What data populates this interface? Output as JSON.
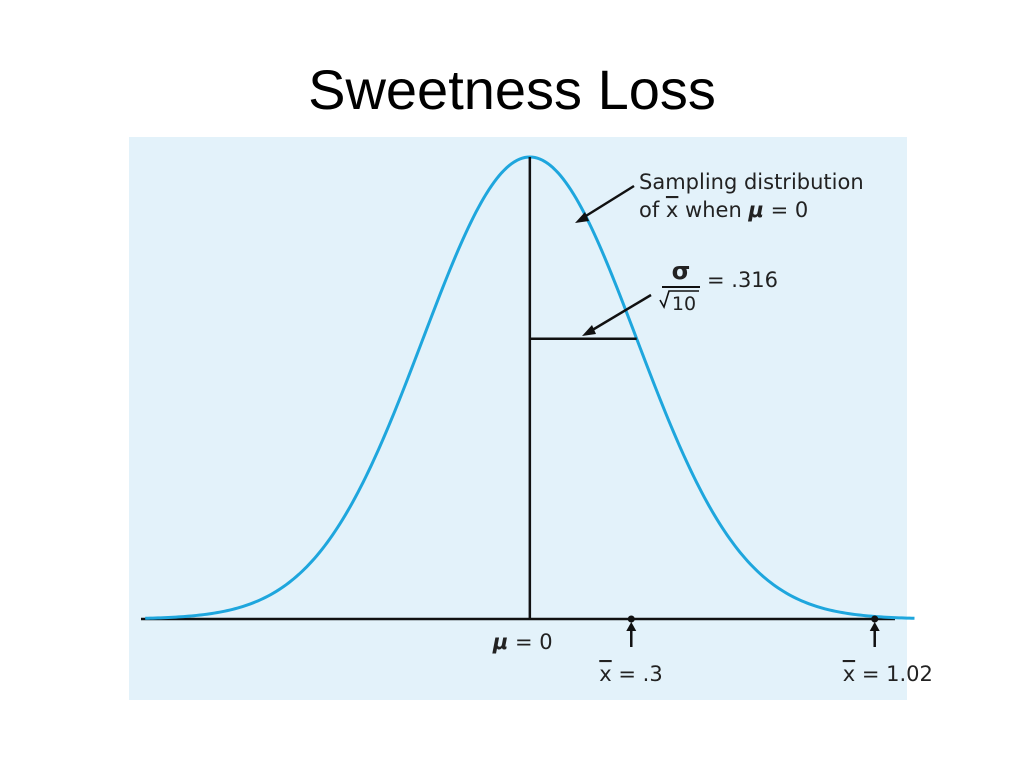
{
  "slide": {
    "title": "Sweetness Loss"
  },
  "colors": {
    "panel_background": "#e3f2fa",
    "curve": "#1ea6dd",
    "ink": "#111111"
  },
  "chart_data": {
    "type": "line",
    "title": "Sweetness Loss",
    "distribution": "normal",
    "mean": 0,
    "standard_error": 0.316,
    "xlim": [
      -1.15,
      1.08
    ],
    "curve_annotation": {
      "line1": "Sampling distribution",
      "line2_prefix": "of ",
      "line2_xbar": "x",
      "line2_middle": " when ",
      "line2_mu": "μ",
      "line2_suffix": " = 0"
    },
    "sd_annotation": {
      "numerator": "σ",
      "denominator": "10",
      "value_text": "= .316"
    },
    "mean_label": {
      "symbol": "μ",
      "text": " = 0"
    },
    "markers": [
      {
        "x": 0.3,
        "symbol": "x",
        "text": " = .3"
      },
      {
        "x": 1.02,
        "symbol": "x",
        "text": " = 1.02"
      }
    ]
  }
}
